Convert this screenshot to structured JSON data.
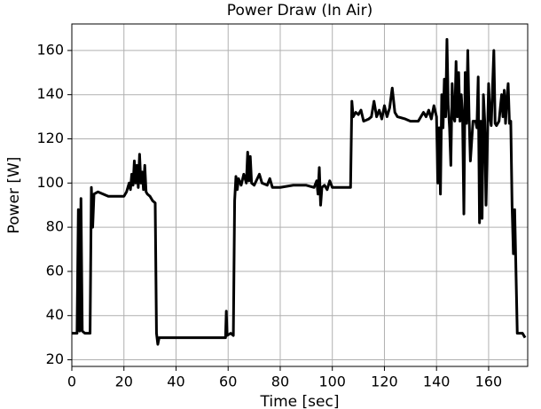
{
  "chart_data": {
    "type": "line",
    "title": "Power Draw (In Air)",
    "x_label": "Time [sec]",
    "y_label": "Power [W]",
    "xlim": [
      0,
      175
    ],
    "ylim": [
      17,
      172
    ],
    "xticks": [
      0,
      20,
      40,
      60,
      80,
      100,
      120,
      140,
      160
    ],
    "yticks": [
      20,
      40,
      60,
      80,
      100,
      120,
      140,
      160
    ],
    "grid": true,
    "series": [
      {
        "color": "#000000",
        "x": [
          0,
          2,
          2.5,
          3,
          3.5,
          4,
          5,
          7,
          7.5,
          8,
          8.5,
          10,
          12,
          14,
          16,
          18,
          20,
          21,
          22,
          22.5,
          23,
          23.5,
          24,
          24.5,
          25,
          25.5,
          26,
          26.5,
          27,
          27.5,
          28,
          28.5,
          29,
          30,
          31,
          32,
          32.5,
          33,
          33.5,
          35,
          40,
          45,
          50,
          55,
          58,
          59,
          59.3,
          59.6,
          61,
          62,
          62.5,
          63,
          63.5,
          64,
          65,
          66,
          67,
          67.5,
          68,
          68.5,
          69,
          70,
          72,
          73,
          75,
          76,
          77,
          80,
          85,
          90,
          93,
          94,
          94.5,
          95,
          95.5,
          96,
          97,
          98,
          99,
          100,
          103,
          106,
          107,
          107.5,
          108,
          109,
          110,
          111,
          112,
          114,
          115,
          116,
          117,
          118,
          119,
          120,
          121,
          122,
          123,
          124,
          125,
          128,
          130,
          133,
          135,
          136,
          137,
          138,
          139,
          140,
          140.5,
          141,
          141.5,
          142,
          142.5,
          143,
          143.5,
          144,
          144.5,
          145,
          145.5,
          146,
          146.5,
          147,
          147.5,
          148,
          148.5,
          149,
          149.5,
          150,
          150.5,
          151,
          151.5,
          152,
          152.5,
          153,
          154,
          155,
          155.5,
          156,
          156.5,
          157,
          157.5,
          158,
          158.5,
          159,
          160,
          160.5,
          161,
          162,
          162.5,
          163,
          164,
          165,
          165.5,
          166,
          166.5,
          167,
          167.5,
          168,
          168.5,
          169,
          169.5,
          170,
          170.5,
          171,
          173,
          174
        ],
        "values": [
          32,
          32,
          88,
          33,
          93,
          33,
          32,
          32,
          98,
          80,
          95,
          96,
          95,
          94,
          94,
          94,
          94,
          96,
          100,
          97,
          104,
          99,
          110,
          100,
          108,
          98,
          113,
          100,
          105,
          97,
          108,
          96,
          95,
          94,
          92,
          91,
          32,
          27,
          30,
          30,
          30,
          30,
          30,
          30,
          30,
          30,
          42,
          31,
          32,
          31,
          92,
          103,
          97,
          102,
          99,
          104,
          100,
          114,
          101,
          112,
          100,
          99,
          104,
          100,
          99,
          102,
          98,
          98,
          99,
          99,
          98,
          101,
          95,
          107,
          90,
          98,
          99,
          97,
          101,
          98,
          98,
          98,
          98,
          137,
          130,
          132,
          131,
          133,
          128,
          129,
          130,
          137,
          130,
          133,
          129,
          135,
          130,
          134,
          143,
          132,
          130,
          129,
          128,
          128,
          132,
          130,
          133,
          129,
          135,
          130,
          100,
          125,
          95,
          140,
          125,
          147,
          130,
          165,
          135,
          125,
          108,
          145,
          130,
          128,
          155,
          130,
          150,
          128,
          140,
          130,
          86,
          150,
          127,
          160,
          130,
          110,
          128,
          128,
          125,
          148,
          82,
          128,
          84,
          140,
          128,
          90,
          145,
          130,
          126,
          160,
          127,
          126,
          128,
          140,
          130,
          142,
          127,
          138,
          145,
          127,
          128,
          90,
          68,
          88,
          60,
          32,
          32,
          30
        ]
      }
    ]
  }
}
